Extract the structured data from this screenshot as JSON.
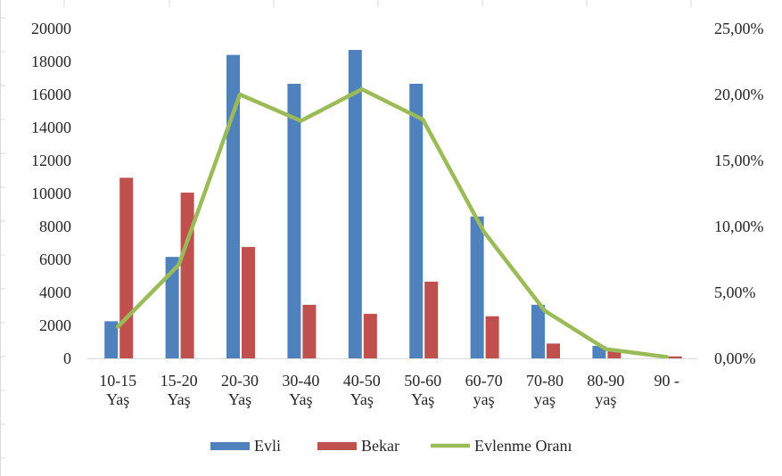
{
  "chart_data": {
    "type": "bar",
    "categories": [
      "10-15 Yaş",
      "15-20 Yaş",
      "20-30 Yaş",
      "30-40 Yaş",
      "40-50 Yaş",
      "50-60 Yaş",
      "60-70 yaş",
      "70-80 yaş",
      "80-90 yaş",
      "90 -"
    ],
    "category_lines": [
      [
        "10-15",
        "Yaş"
      ],
      [
        "15-20",
        "Yaş"
      ],
      [
        "20-30",
        "Yaş"
      ],
      [
        "30-40",
        "Yaş"
      ],
      [
        "40-50",
        "Yaş"
      ],
      [
        "50-60",
        "Yaş"
      ],
      [
        "60-70",
        "yaş"
      ],
      [
        "70-80",
        "yaş"
      ],
      [
        "80-90",
        "yaş"
      ],
      [
        "90 -",
        ""
      ]
    ],
    "series": [
      {
        "name": "Evli",
        "type": "bar",
        "axis": "left",
        "color": "#4f81bd",
        "values": [
          2250,
          6150,
          18400,
          16650,
          18700,
          16650,
          8600,
          3250,
          750,
          0
        ]
      },
      {
        "name": "Bekar",
        "type": "bar",
        "axis": "left",
        "color": "#c0504d",
        "values": [
          10950,
          10050,
          6750,
          3250,
          2700,
          4650,
          2550,
          900,
          450,
          120
        ]
      },
      {
        "name": "Evlenme Oranı",
        "type": "line",
        "axis": "right",
        "color": "#9bbb59",
        "values": [
          2.4,
          7.1,
          20.0,
          18.0,
          20.4,
          18.1,
          9.6,
          3.6,
          0.7,
          0.1
        ]
      }
    ],
    "y_left": {
      "min": 0,
      "max": 20000,
      "ticks": [
        "0",
        "2000",
        "4000",
        "6000",
        "8000",
        "10000",
        "12000",
        "14000",
        "16000",
        "18000",
        "20000"
      ]
    },
    "y_right": {
      "min": 0,
      "max": 25,
      "ticks": [
        "0,00%",
        "5,00%",
        "10,00%",
        "15,00%",
        "20,00%",
        "25,00%"
      ]
    },
    "grid": false,
    "legend_position": "bottom",
    "title": "",
    "xlabel": "",
    "ylabel": ""
  }
}
